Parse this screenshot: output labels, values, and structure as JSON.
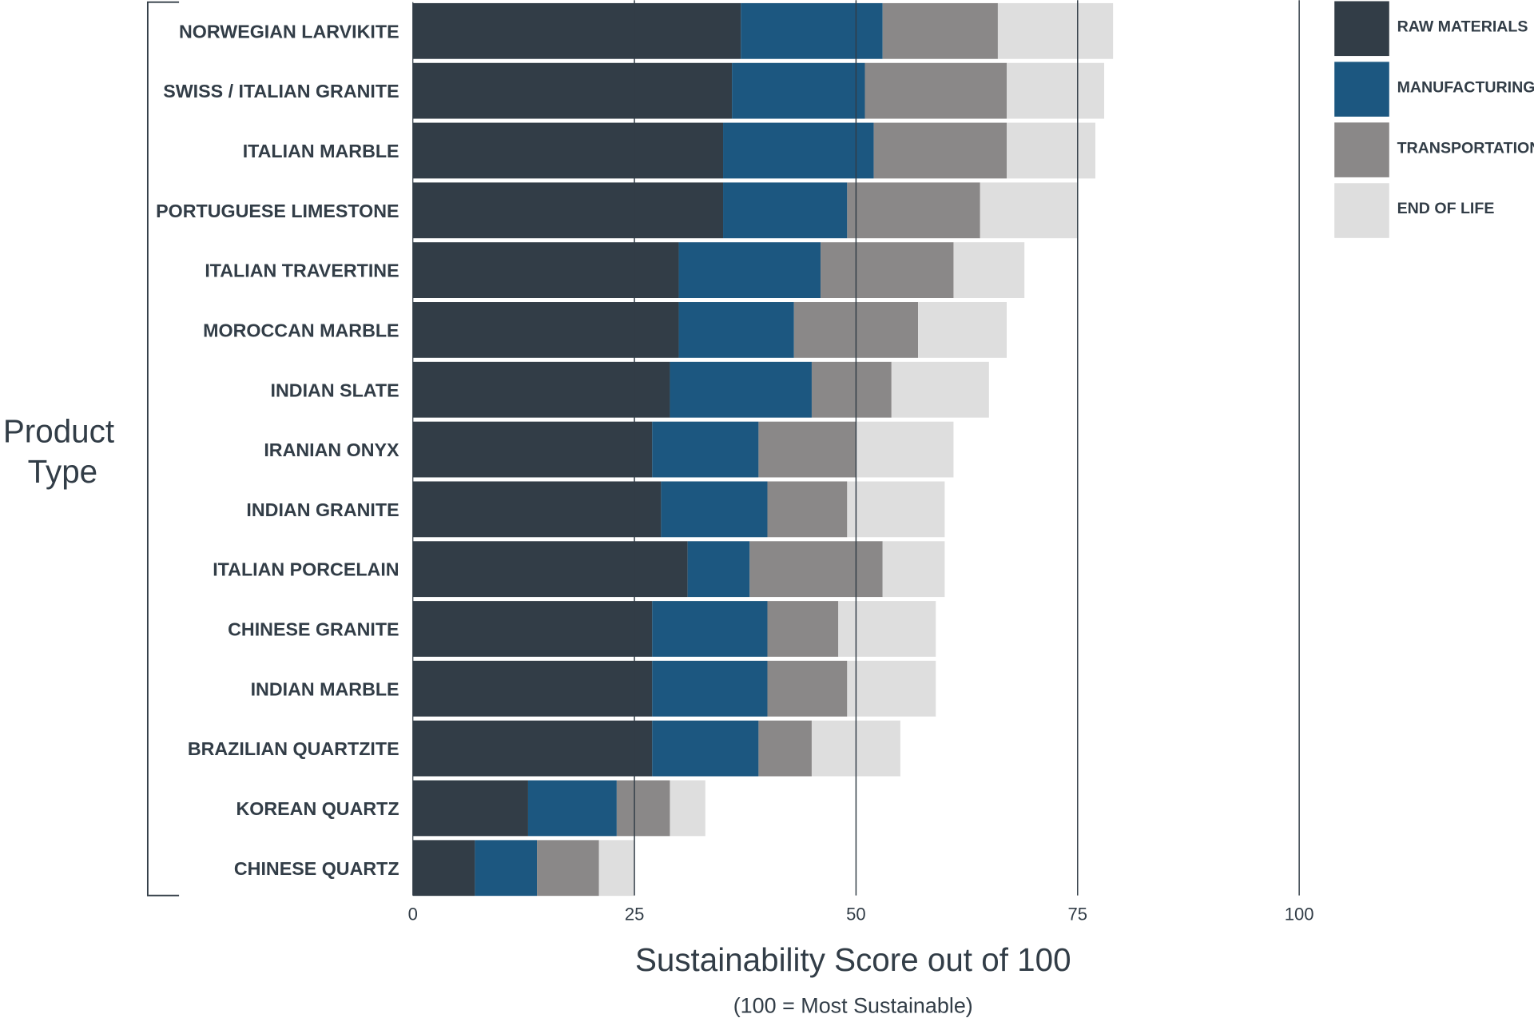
{
  "chart_data": {
    "type": "bar",
    "orientation": "horizontal",
    "stacked": true,
    "title": "",
    "xlabel": "Sustainability Score out of 100",
    "xlabel_sub": "(100 = Most Sustainable)",
    "ylabel_lines": [
      "Product",
      "Type"
    ],
    "xlim": [
      0,
      100
    ],
    "xticks": [
      "0",
      "25",
      "50",
      "75",
      "100"
    ],
    "grid": "vertical lines at 25, 50, 75, 100",
    "legend_position": "top-right",
    "categories": [
      "NORWEGIAN LARVIKITE",
      "SWISS / ITALIAN GRANITE",
      "ITALIAN MARBLE",
      "PORTUGUESE LIMESTONE",
      "ITALIAN TRAVERTINE",
      "MOROCCAN MARBLE",
      "INDIAN SLATE",
      "IRANIAN ONYX",
      "INDIAN GRANITE",
      "ITALIAN PORCELAIN",
      "CHINESE GRANITE",
      "INDIAN MARBLE",
      "BRAZILIAN QUARTZITE",
      "KOREAN QUARTZ",
      "CHINESE QUARTZ"
    ],
    "series": [
      {
        "name": "RAW MATERIALS",
        "color": "#323d47",
        "values": [
          37,
          36,
          35,
          35,
          30,
          30,
          29,
          27,
          28,
          31,
          27,
          27,
          27,
          13,
          7
        ]
      },
      {
        "name": "MANUFACTURING",
        "color": "#1c5780",
        "values": [
          16,
          15,
          17,
          14,
          16,
          13,
          16,
          12,
          12,
          7,
          13,
          13,
          12,
          10,
          7
        ]
      },
      {
        "name": "TRANSPORTATION",
        "color": "#8a8888",
        "values": [
          13,
          16,
          15,
          15,
          15,
          14,
          9,
          11,
          9,
          15,
          8,
          9,
          6,
          6,
          7
        ]
      },
      {
        "name": "END OF LIFE",
        "color": "#dedede",
        "values": [
          13,
          11,
          10,
          11,
          8,
          10,
          11,
          11,
          11,
          7,
          11,
          10,
          10,
          4,
          4
        ]
      }
    ]
  }
}
